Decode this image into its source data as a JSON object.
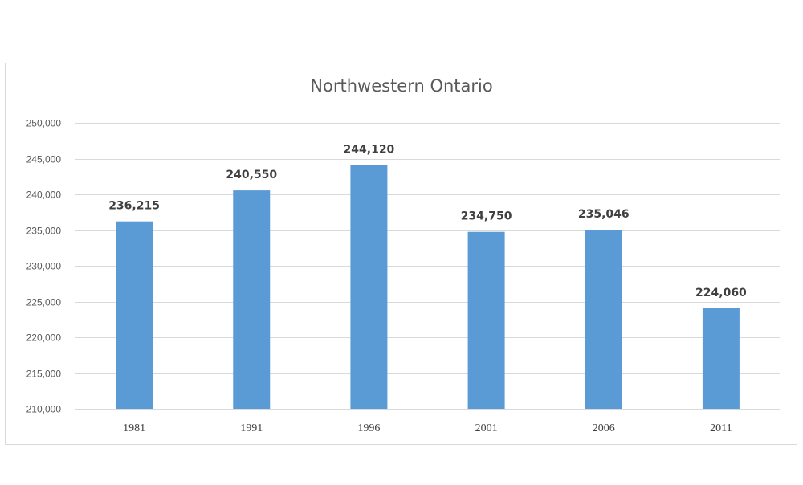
{
  "chart_data": {
    "type": "bar",
    "title": "Northwestern Ontario",
    "xlabel": "",
    "ylabel": "",
    "categories": [
      "1981",
      "1991",
      "1996",
      "2001",
      "2006",
      "2011"
    ],
    "values": [
      236215,
      240550,
      244120,
      234750,
      235046,
      224060
    ],
    "data_labels": [
      "236,215",
      "240,550",
      "244,120",
      "234,750",
      "235,046",
      "224,060"
    ],
    "ylim": [
      210000,
      250000
    ],
    "yticks": [
      210000,
      215000,
      220000,
      225000,
      230000,
      235000,
      240000,
      245000,
      250000
    ],
    "ytick_labels": [
      "210,000",
      "215,000",
      "220,000",
      "225,000",
      "230,000",
      "235,000",
      "240,000",
      "245,000",
      "250,000"
    ],
    "grid": true,
    "legend": "none",
    "bar_color": "#5b9bd5",
    "grid_color": "#d9d9d9"
  }
}
